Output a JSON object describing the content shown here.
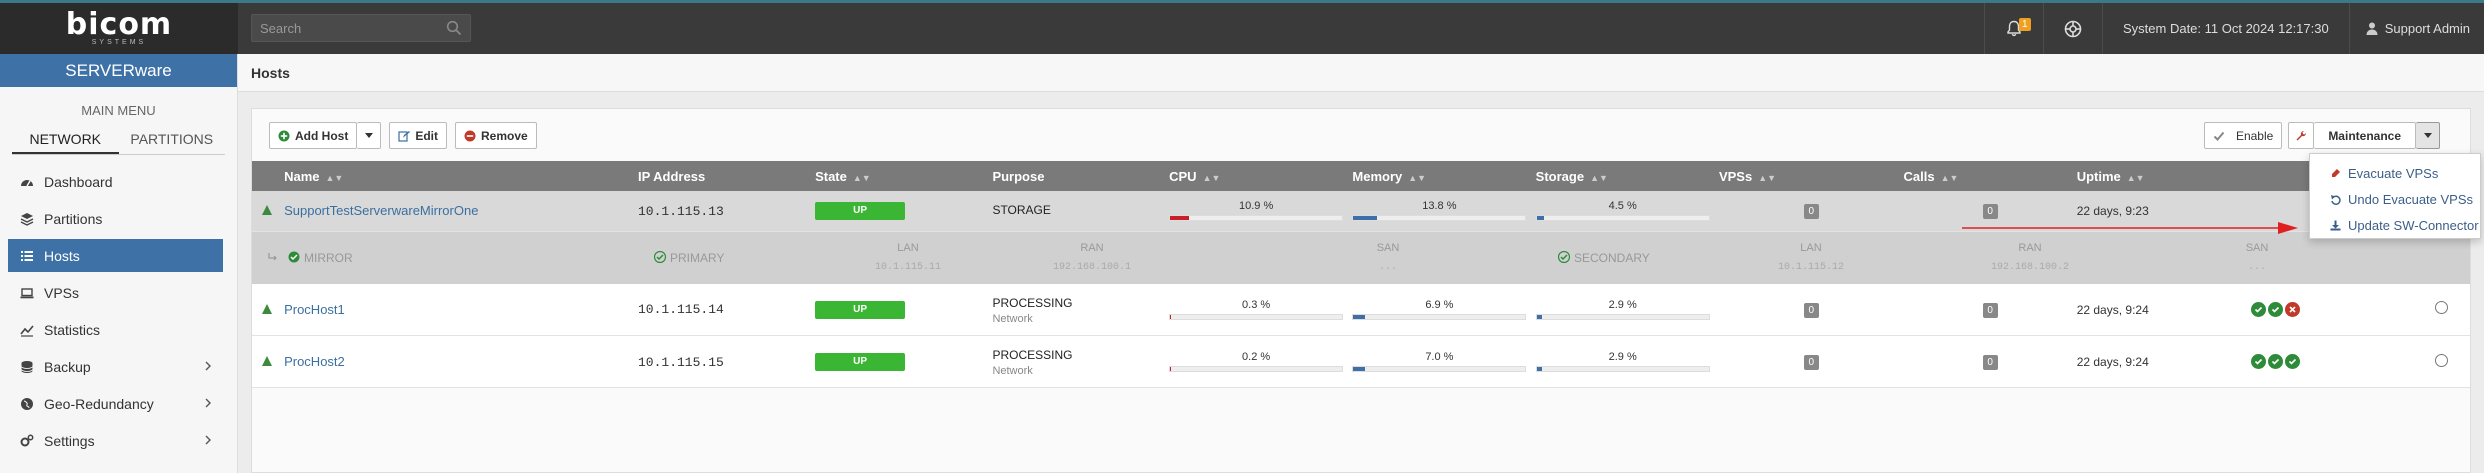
{
  "topbar": {
    "logo_main": "bicom",
    "logo_sub": "SYSTEMS",
    "search_placeholder": "Search",
    "notification_count": "1",
    "system_date": "System Date: 11 Oct 2024 12:17:30",
    "user_name": "Support Admin"
  },
  "sidebar": {
    "brand": "SERVERware",
    "main_menu_label": "MAIN MENU",
    "tabs": [
      {
        "label": "NETWORK"
      },
      {
        "label": "PARTITIONS"
      }
    ],
    "items": [
      {
        "label": "Dashboard",
        "icon": "dashboard-icon"
      },
      {
        "label": "Partitions",
        "icon": "partitions-icon"
      },
      {
        "label": "Hosts",
        "icon": "list-icon"
      },
      {
        "label": "VPSs",
        "icon": "laptop-icon"
      },
      {
        "label": "Statistics",
        "icon": "statistics-icon"
      },
      {
        "label": "Backup",
        "icon": "database-icon"
      },
      {
        "label": "Geo-Redundancy",
        "icon": "globe-icon"
      },
      {
        "label": "Settings",
        "icon": "gears-icon"
      }
    ]
  },
  "page": {
    "title": "Hosts"
  },
  "toolbar": {
    "add_host": "Add Host",
    "edit": "Edit",
    "remove": "Remove",
    "enable": "Enable",
    "maintenance": "Maintenance"
  },
  "maintenance_menu": {
    "items": [
      {
        "label": "Evacuate VPSs",
        "icon": "evacuate-icon"
      },
      {
        "label": "Undo Evacuate VPSs",
        "icon": "undo-icon"
      },
      {
        "label": "Update SW-Connector",
        "icon": "download-icon"
      }
    ]
  },
  "table": {
    "columns": {
      "name": "Name",
      "ip": "IP Address",
      "state": "State",
      "purpose": "Purpose",
      "cpu": "CPU",
      "memory": "Memory",
      "storage": "Storage",
      "vpss": "VPSs",
      "calls": "Calls",
      "uptime": "Uptime"
    },
    "rows": [
      {
        "name": "SupportTestServerwareMirrorOne",
        "ip": "10.1.115.13",
        "state": "UP",
        "purpose": "STORAGE",
        "purpose_sub": "",
        "cpu": "10.9 %",
        "cpu_value": 10.9,
        "memory": "13.8 %",
        "memory_value": 13.8,
        "storage": "4.5 %",
        "storage_value": 4.5,
        "vpss": "0",
        "calls": "0",
        "uptime": "22 days, 9:23"
      },
      {
        "name": "ProcHost1",
        "ip": "10.1.115.14",
        "state": "UP",
        "purpose": "PROCESSING",
        "purpose_sub": "Network",
        "cpu": "0.3 %",
        "cpu_value": 0.3,
        "memory": "6.9 %",
        "memory_value": 6.9,
        "storage": "2.9 %",
        "storage_value": 2.9,
        "vpss": "0",
        "calls": "0",
        "uptime": "22 days, 9:24"
      },
      {
        "name": "ProcHost2",
        "ip": "10.1.115.15",
        "state": "UP",
        "purpose": "PROCESSING",
        "purpose_sub": "Network",
        "cpu": "0.2 %",
        "cpu_value": 0.2,
        "memory": "7.0 %",
        "memory_value": 7.0,
        "storage": "2.9 %",
        "storage_value": 2.9,
        "vpss": "0",
        "calls": "0",
        "uptime": "22 days, 9:24"
      }
    ],
    "mirror_row": {
      "mirror": "MIRROR",
      "primary": "PRIMARY",
      "secondary": "SECONDARY",
      "lan": "LAN",
      "ran": "RAN",
      "san": "SAN",
      "primary_lan": "10.1.115.11",
      "primary_ran": "192.168.100.1",
      "primary_san": "...",
      "secondary_lan": "10.1.115.12",
      "secondary_ran": "192.168.100.2",
      "secondary_san": "..."
    }
  },
  "colors": {
    "brand_blue": "#3e72a7",
    "up_green": "#3bb534",
    "cpu_red": "#c8202a",
    "bar_blue": "#3e6fa8",
    "ok_green": "#2e8b3a",
    "error_red": "#c0392b"
  }
}
